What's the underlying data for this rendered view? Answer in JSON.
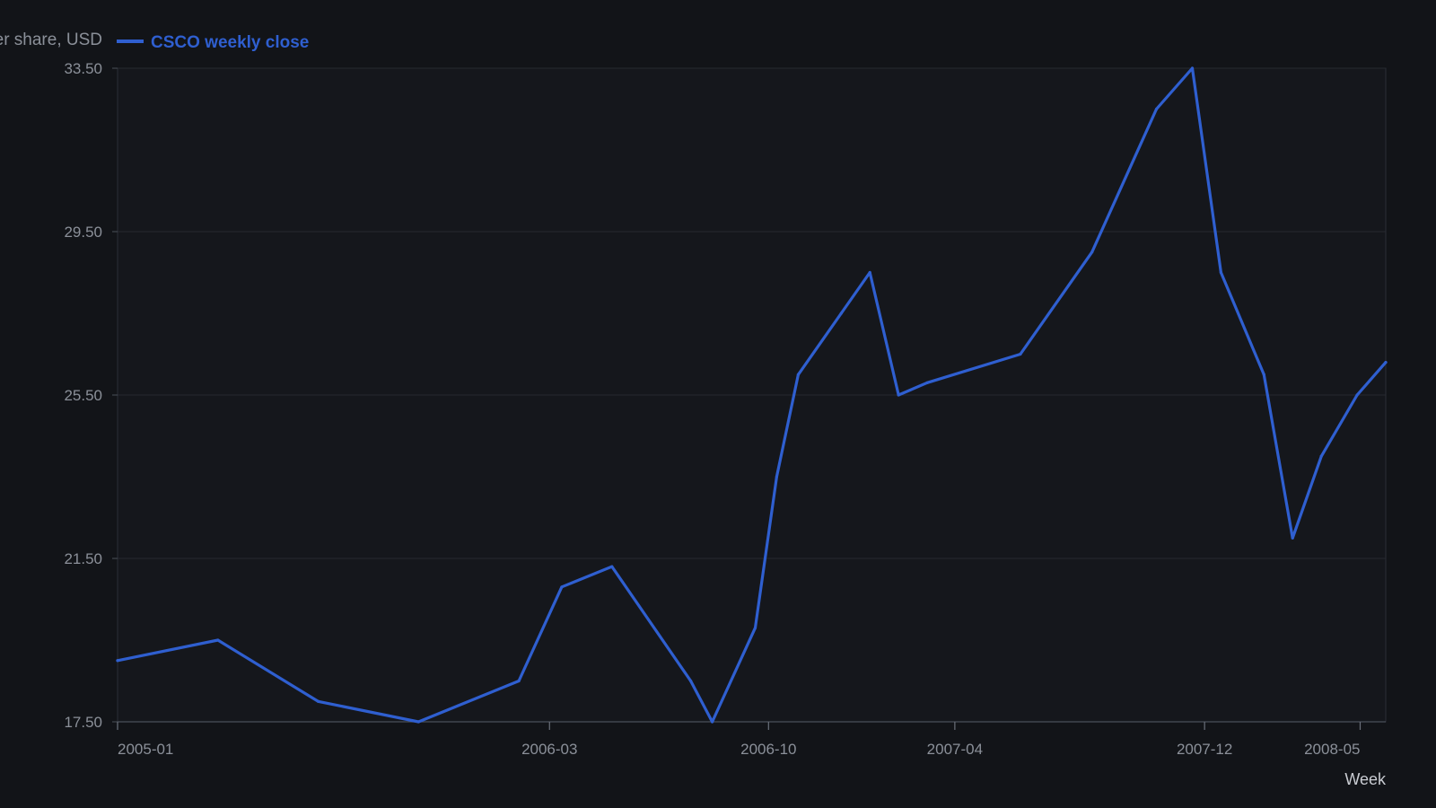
{
  "chart_data": {
    "type": "line",
    "title": "",
    "xlabel": "Week",
    "ylabel": "er share, USD",
    "ylim": [
      17.5,
      33.5
    ],
    "y_ticks": [
      "17.50",
      "21.50",
      "25.50",
      "29.50",
      "33.50"
    ],
    "x_ticks": [
      "2005-01",
      "2006-03",
      "2006-10",
      "2007-04",
      "2007-12",
      "2008-05"
    ],
    "x_range": [
      "2005-01-03",
      "2008-05-26"
    ],
    "grid": true,
    "legend": "top-left",
    "series": [
      {
        "name": "CSCO weekly close",
        "color": "#2f5fd0",
        "points": [
          [
            "2005-01-03",
            19.0
          ],
          [
            "2005-04-11",
            19.5
          ],
          [
            "2005-07-18",
            18.0
          ],
          [
            "2005-10-24",
            17.5
          ],
          [
            "2006-01-30",
            18.5
          ],
          [
            "2006-03-13",
            20.8
          ],
          [
            "2006-05-01",
            21.3
          ],
          [
            "2006-07-17",
            18.5
          ],
          [
            "2006-08-07",
            17.5
          ],
          [
            "2006-09-18",
            19.8
          ],
          [
            "2006-10-09",
            23.5
          ],
          [
            "2006-10-30",
            26.0
          ],
          [
            "2006-12-11",
            27.5
          ],
          [
            "2007-01-08",
            28.5
          ],
          [
            "2007-02-05",
            25.5
          ],
          [
            "2007-03-05",
            25.8
          ],
          [
            "2007-06-04",
            26.5
          ],
          [
            "2007-08-13",
            29.0
          ],
          [
            "2007-10-15",
            32.5
          ],
          [
            "2007-11-19",
            33.5
          ],
          [
            "2007-12-17",
            28.5
          ],
          [
            "2008-01-28",
            26.0
          ],
          [
            "2008-02-25",
            22.0
          ],
          [
            "2008-03-24",
            24.0
          ],
          [
            "2008-04-28",
            25.5
          ],
          [
            "2008-05-26",
            26.3
          ]
        ]
      }
    ]
  }
}
